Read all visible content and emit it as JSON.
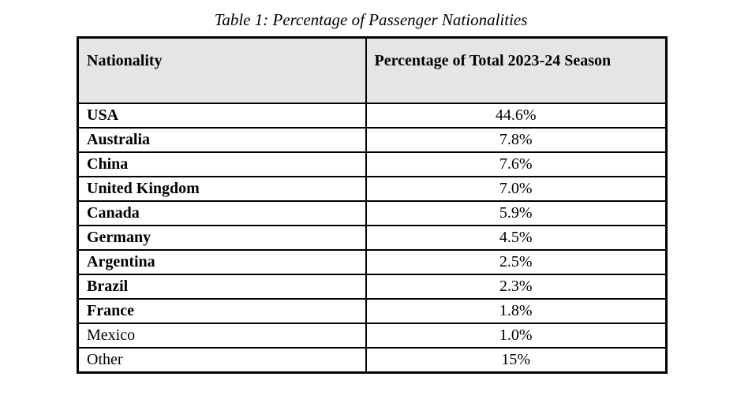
{
  "title": "Table 1: Percentage of Passenger Nationalities",
  "table": {
    "headers": [
      "Nationality",
      "Percentage of Total 2023-24 Season"
    ],
    "header_bg": "#e5e5e5",
    "border_color": "#000000",
    "rows": [
      {
        "nationality": "USA",
        "percentage": "44.6%",
        "bold": true
      },
      {
        "nationality": "Australia",
        "percentage": "7.8%",
        "bold": true
      },
      {
        "nationality": "China",
        "percentage": "7.6%",
        "bold": true
      },
      {
        "nationality": "United Kingdom",
        "percentage": "7.0%",
        "bold": true
      },
      {
        "nationality": "Canada",
        "percentage": "5.9%",
        "bold": true
      },
      {
        "nationality": "Germany",
        "percentage": "4.5%",
        "bold": true
      },
      {
        "nationality": "Argentina",
        "percentage": "2.5%",
        "bold": true
      },
      {
        "nationality": "Brazil",
        "percentage": "2.3%",
        "bold": true
      },
      {
        "nationality": "France",
        "percentage": "1.8%",
        "bold": true
      },
      {
        "nationality": "Mexico",
        "percentage": "1.0%",
        "bold": false
      },
      {
        "nationality": "Other",
        "percentage": "15%",
        "bold": false
      }
    ]
  },
  "chart_data": {
    "type": "table",
    "title": "Table 1: Percentage of Passenger Nationalities",
    "columns": [
      "Nationality",
      "Percentage of Total 2023-24 Season"
    ],
    "categories": [
      "USA",
      "Australia",
      "China",
      "United Kingdom",
      "Canada",
      "Germany",
      "Argentina",
      "Brazil",
      "France",
      "Mexico",
      "Other"
    ],
    "values": [
      44.6,
      7.8,
      7.6,
      7.0,
      5.9,
      4.5,
      2.5,
      2.3,
      1.8,
      1.0,
      15
    ]
  }
}
